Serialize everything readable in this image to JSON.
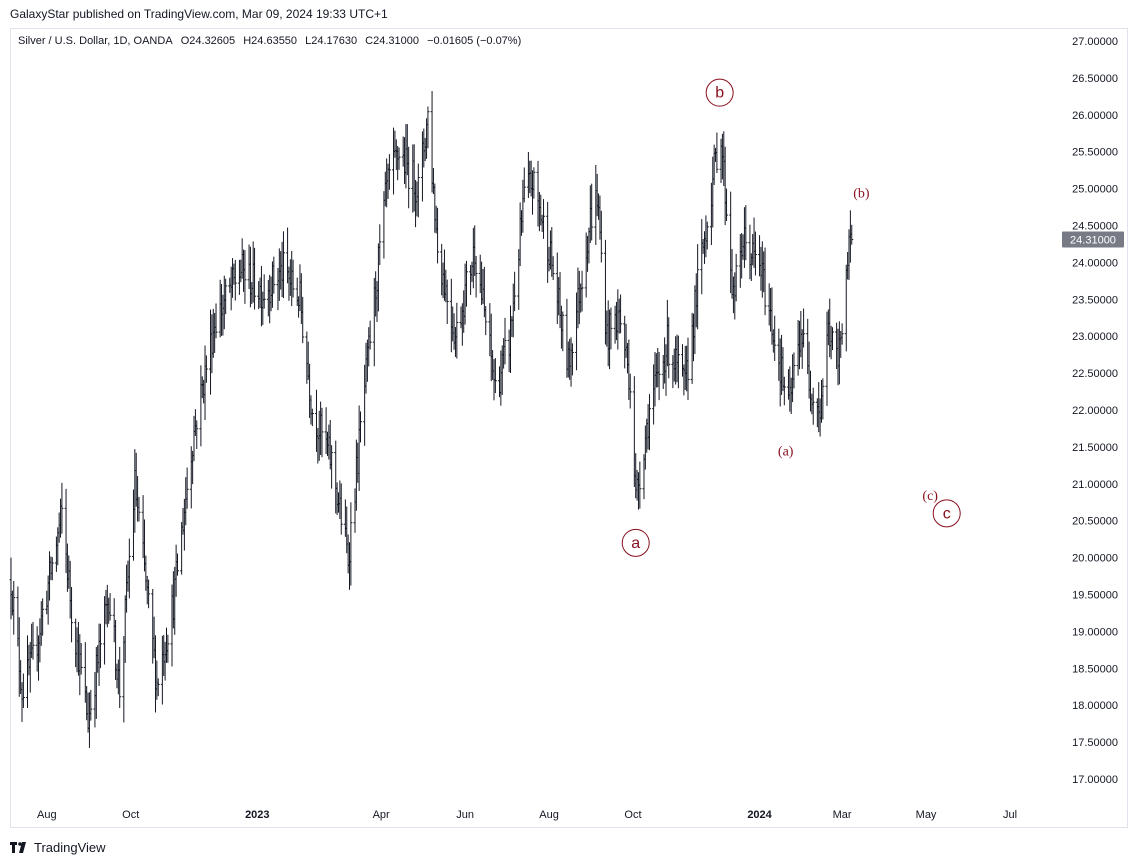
{
  "publisher_line": "GalaxyStar published on TradingView.com, Mar 09, 2024 19:33 UTC+1",
  "legend": {
    "symbol": "Silver / U.S. Dollar, 1D, OANDA",
    "open": "O24.32605",
    "high": "H24.63550",
    "low": "L24.17630",
    "close": "C24.31000",
    "change": "−0.01605 (−0.07%)"
  },
  "last_price_label": "24.31000",
  "footer": {
    "brand": "TradingView",
    "logo_icon": "tradingview-logo-icon"
  },
  "colors": {
    "candle": "#131722",
    "annotation": "#880e1f",
    "price_tag_bg": "#787b86",
    "price_tag_text": "#ffffff",
    "axis_text": "#131722",
    "border": "#e0e3eb"
  },
  "chart_data": {
    "type": "bar",
    "style": "OHLC daily bars",
    "symbol": "Silver / U.S. Dollar",
    "ylim": [
      16.5,
      27.4
    ],
    "y_tick_labels": [
      "27.00000",
      "26.50000",
      "26.00000",
      "25.50000",
      "25.00000",
      "24.50000",
      "24.00000",
      "23.50000",
      "23.00000",
      "22.50000",
      "22.00000",
      "21.50000",
      "21.00000",
      "20.50000",
      "20.00000",
      "19.50000",
      "19.00000",
      "18.50000",
      "18.00000",
      "17.50000",
      "17.00000"
    ],
    "y_tick_values": [
      27.0,
      26.5,
      26.0,
      25.5,
      25.0,
      24.5,
      24.0,
      23.5,
      23.0,
      22.5,
      22.0,
      21.5,
      21.0,
      20.5,
      20.0,
      19.5,
      19.0,
      18.5,
      18.0,
      17.5,
      17.0
    ],
    "x_range": [
      "2022-07-06",
      "2024-08-09"
    ],
    "x_tick_labels": [
      "Aug",
      "Oct",
      "2023",
      "Apr",
      "Jun",
      "Aug",
      "Oct",
      "2024",
      "Mar",
      "May",
      "Jul"
    ],
    "x_tick_dates": [
      "2022-08-01",
      "2022-10-01",
      "2023-01-01",
      "2023-04-01",
      "2023-06-01",
      "2023-08-01",
      "2023-10-01",
      "2024-01-01",
      "2024-03-01",
      "2024-05-01",
      "2024-07-01"
    ],
    "series_path": [
      {
        "date": "2022-07-06",
        "close": 19.7
      },
      {
        "date": "2022-07-14",
        "close": 18.2
      },
      {
        "date": "2022-07-22",
        "close": 18.6
      },
      {
        "date": "2022-08-05",
        "close": 19.9
      },
      {
        "date": "2022-08-12",
        "close": 20.6
      },
      {
        "date": "2022-08-19",
        "close": 19.3
      },
      {
        "date": "2022-08-31",
        "close": 17.8
      },
      {
        "date": "2022-09-15",
        "close": 19.5
      },
      {
        "date": "2022-09-23",
        "close": 18.2
      },
      {
        "date": "2022-10-04",
        "close": 21.0
      },
      {
        "date": "2022-10-20",
        "close": 18.3
      },
      {
        "date": "2022-11-01",
        "close": 19.4
      },
      {
        "date": "2022-11-15",
        "close": 21.6
      },
      {
        "date": "2022-12-01",
        "close": 23.2
      },
      {
        "date": "2022-12-20",
        "close": 23.9
      },
      {
        "date": "2023-01-05",
        "close": 23.6
      },
      {
        "date": "2023-01-20",
        "close": 23.9
      },
      {
        "date": "2023-02-01",
        "close": 23.5
      },
      {
        "date": "2023-02-10",
        "close": 22.0
      },
      {
        "date": "2023-02-24",
        "close": 21.3
      },
      {
        "date": "2023-03-08",
        "close": 20.0
      },
      {
        "date": "2023-03-20",
        "close": 22.3
      },
      {
        "date": "2023-04-05",
        "close": 25.0
      },
      {
        "date": "2023-04-14",
        "close": 25.5
      },
      {
        "date": "2023-04-28",
        "close": 25.0
      },
      {
        "date": "2023-05-05",
        "close": 26.0
      },
      {
        "date": "2023-05-12",
        "close": 24.2
      },
      {
        "date": "2023-05-25",
        "close": 23.0
      },
      {
        "date": "2023-06-08",
        "close": 24.2
      },
      {
        "date": "2023-06-23",
        "close": 22.3
      },
      {
        "date": "2023-07-03",
        "close": 22.9
      },
      {
        "date": "2023-07-14",
        "close": 24.9
      },
      {
        "date": "2023-07-20",
        "close": 25.1
      },
      {
        "date": "2023-08-01",
        "close": 24.2
      },
      {
        "date": "2023-08-15",
        "close": 22.6
      },
      {
        "date": "2023-08-31",
        "close": 24.6
      },
      {
        "date": "2023-09-05",
        "close": 24.9
      },
      {
        "date": "2023-09-12",
        "close": 23.0
      },
      {
        "date": "2023-09-21",
        "close": 23.3
      },
      {
        "date": "2023-09-29",
        "close": 22.4
      },
      {
        "date": "2023-10-03",
        "close": 20.8
      },
      {
        "date": "2023-10-13",
        "close": 22.0
      },
      {
        "date": "2023-10-26",
        "close": 22.9
      },
      {
        "date": "2023-11-08",
        "close": 22.3
      },
      {
        "date": "2023-11-17",
        "close": 23.7
      },
      {
        "date": "2023-12-01",
        "close": 25.5
      },
      {
        "date": "2023-12-04",
        "close": 25.7
      },
      {
        "date": "2023-12-13",
        "close": 23.5
      },
      {
        "date": "2023-12-20",
        "close": 24.3
      },
      {
        "date": "2024-01-02",
        "close": 23.9
      },
      {
        "date": "2024-01-16",
        "close": 22.6
      },
      {
        "date": "2024-01-22",
        "close": 22.0
      },
      {
        "date": "2024-01-31",
        "close": 23.1
      },
      {
        "date": "2024-02-06",
        "close": 22.4
      },
      {
        "date": "2024-02-14",
        "close": 22.0
      },
      {
        "date": "2024-02-20",
        "close": 23.1
      },
      {
        "date": "2024-02-27",
        "close": 22.6
      },
      {
        "date": "2024-03-04",
        "close": 23.9
      },
      {
        "date": "2024-03-08",
        "close": 24.31
      }
    ],
    "annotations": [
      {
        "text": "a",
        "style": "circled",
        "date": "2023-10-03",
        "price": 20.2
      },
      {
        "text": "b",
        "style": "circled",
        "date": "2023-12-03",
        "price": 26.3
      },
      {
        "text": "(a)",
        "style": "plain",
        "date": "2024-01-20",
        "price": 21.45
      },
      {
        "text": "(b)",
        "style": "plain",
        "date": "2024-03-15",
        "price": 24.95
      },
      {
        "text": "(c)",
        "style": "plain",
        "date": "2024-05-04",
        "price": 20.85
      },
      {
        "text": "c",
        "style": "circled",
        "date": "2024-05-16",
        "price": 20.6
      }
    ]
  }
}
